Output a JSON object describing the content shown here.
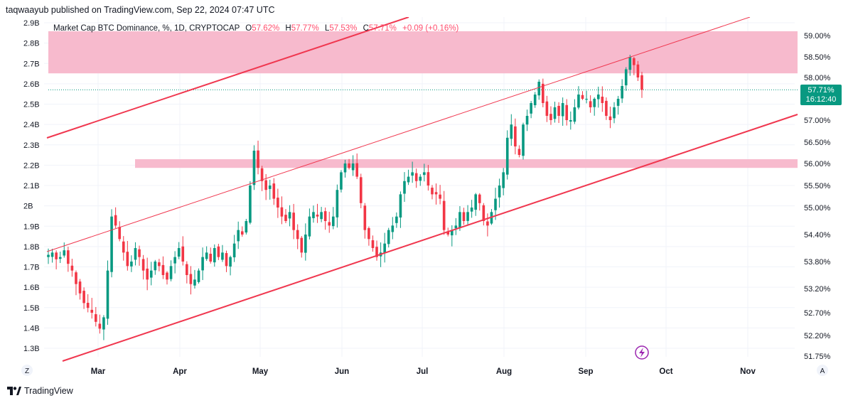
{
  "header": {
    "publish_text": "taqwaayub published on TradingView.com, Sep 22, 2024 07:47 UTC"
  },
  "legend": {
    "symbol": "Market Cap BTC Dominance, %, 1D, CRYPTOCAP",
    "open_label": "O",
    "open_value": "57.62%",
    "high_label": "H",
    "high_value": "57.77%",
    "low_label": "L",
    "low_value": "57.53%",
    "close_label": "C",
    "close_value": "57.71%",
    "change": "+0.09 (+0.16%)"
  },
  "price_badge": {
    "price": "57.71%",
    "countdown": "16:12:40"
  },
  "footer": {
    "brand": "TradingView"
  },
  "buttons": {
    "left_scale": "Z",
    "right_scale": "A"
  },
  "colors": {
    "up": "#089981",
    "down": "#f23645",
    "zone": "#f7b6ca",
    "channel": "#f0374f",
    "badge": "#089981",
    "lightning": "#9c27b0"
  },
  "chart_data": {
    "type": "candlestick",
    "title": "Market Cap BTC Dominance, %, 1D, CRYPTOCAP",
    "x_labels": [
      "Mar",
      "Apr",
      "May",
      "Jun",
      "Jul",
      "Aug",
      "Sep",
      "Oct",
      "Nov"
    ],
    "right_axis": {
      "unit": "%",
      "ticks": [
        "59.00%",
        "58.50%",
        "58.00%",
        "57.00%",
        "56.50%",
        "56.00%",
        "55.50%",
        "55.00%",
        "54.40%",
        "53.80%",
        "53.20%",
        "52.70%",
        "52.20%",
        "51.75%"
      ],
      "tick_values": [
        59.0,
        58.5,
        58.0,
        57.0,
        56.5,
        56.0,
        55.5,
        55.0,
        54.4,
        53.8,
        53.2,
        52.7,
        52.2,
        51.75
      ]
    },
    "left_axis": {
      "ticks": [
        "2.9B",
        "2.8B",
        "2.7B",
        "2.6B",
        "2.5B",
        "2.4B",
        "2.3B",
        "2.2B",
        "2.1B",
        "2B",
        "1.9B",
        "1.8B",
        "1.7B",
        "1.6B",
        "1.5B",
        "1.4B",
        "1.3B"
      ],
      "range": [
        1.3,
        2.9
      ]
    },
    "last_price": 57.71,
    "zones": [
      {
        "name": "resistance-zone",
        "from_pct": 58.1,
        "to_pct": 59.1
      },
      {
        "name": "support-zone",
        "from_pct": 55.9,
        "to_pct": 56.1
      }
    ],
    "candle_path_close": [
      53.95,
      54.0,
      53.85,
      53.9,
      54.05,
      53.75,
      53.6,
      53.3,
      53.1,
      52.9,
      52.8,
      52.7,
      52.5,
      52.35,
      52.6,
      53.6,
      54.8,
      54.6,
      54.3,
      54.0,
      53.7,
      53.8,
      54.1,
      53.9,
      53.6,
      53.4,
      53.6,
      53.8,
      53.7,
      53.5,
      53.4,
      53.7,
      53.9,
      54.1,
      53.8,
      53.5,
      53.3,
      53.4,
      53.6,
      53.9,
      54.0,
      53.8,
      54.1,
      53.9,
      54.0,
      53.7,
      53.9,
      54.2,
      54.5,
      54.4,
      54.7,
      55.5,
      56.3,
      55.9,
      55.6,
      55.4,
      55.5,
      55.2,
      55.0,
      54.8,
      54.7,
      54.9,
      54.5,
      54.3,
      54.0,
      54.4,
      54.8,
      54.9,
      54.8,
      54.9,
      54.7,
      54.6,
      54.8,
      55.4,
      55.8,
      56.0,
      55.9,
      56.0,
      55.7,
      55.1,
      54.5,
      54.3,
      54.1,
      53.9,
      54.0,
      54.2,
      54.5,
      54.6,
      54.8,
      55.3,
      55.6,
      55.7,
      55.8,
      55.6,
      55.7,
      55.8,
      55.5,
      55.3,
      55.3,
      55.2,
      54.5,
      54.4,
      54.5,
      54.6,
      54.9,
      54.7,
      54.9,
      55.0,
      55.3,
      55.1,
      54.7,
      54.6,
      54.9,
      55.2,
      55.5,
      55.8,
      56.6,
      56.9,
      56.4,
      56.2,
      56.9,
      57.1,
      57.4,
      57.6,
      57.9,
      57.4,
      57.1,
      57.0,
      57.3,
      57.1,
      57.4,
      57.0,
      57.0,
      57.3,
      57.6,
      57.5,
      57.5,
      57.3,
      57.5,
      57.6,
      57.4,
      57.1,
      57.0,
      57.3,
      57.5,
      57.8,
      58.2,
      58.5,
      58.3,
      58.0,
      57.71
    ]
  }
}
